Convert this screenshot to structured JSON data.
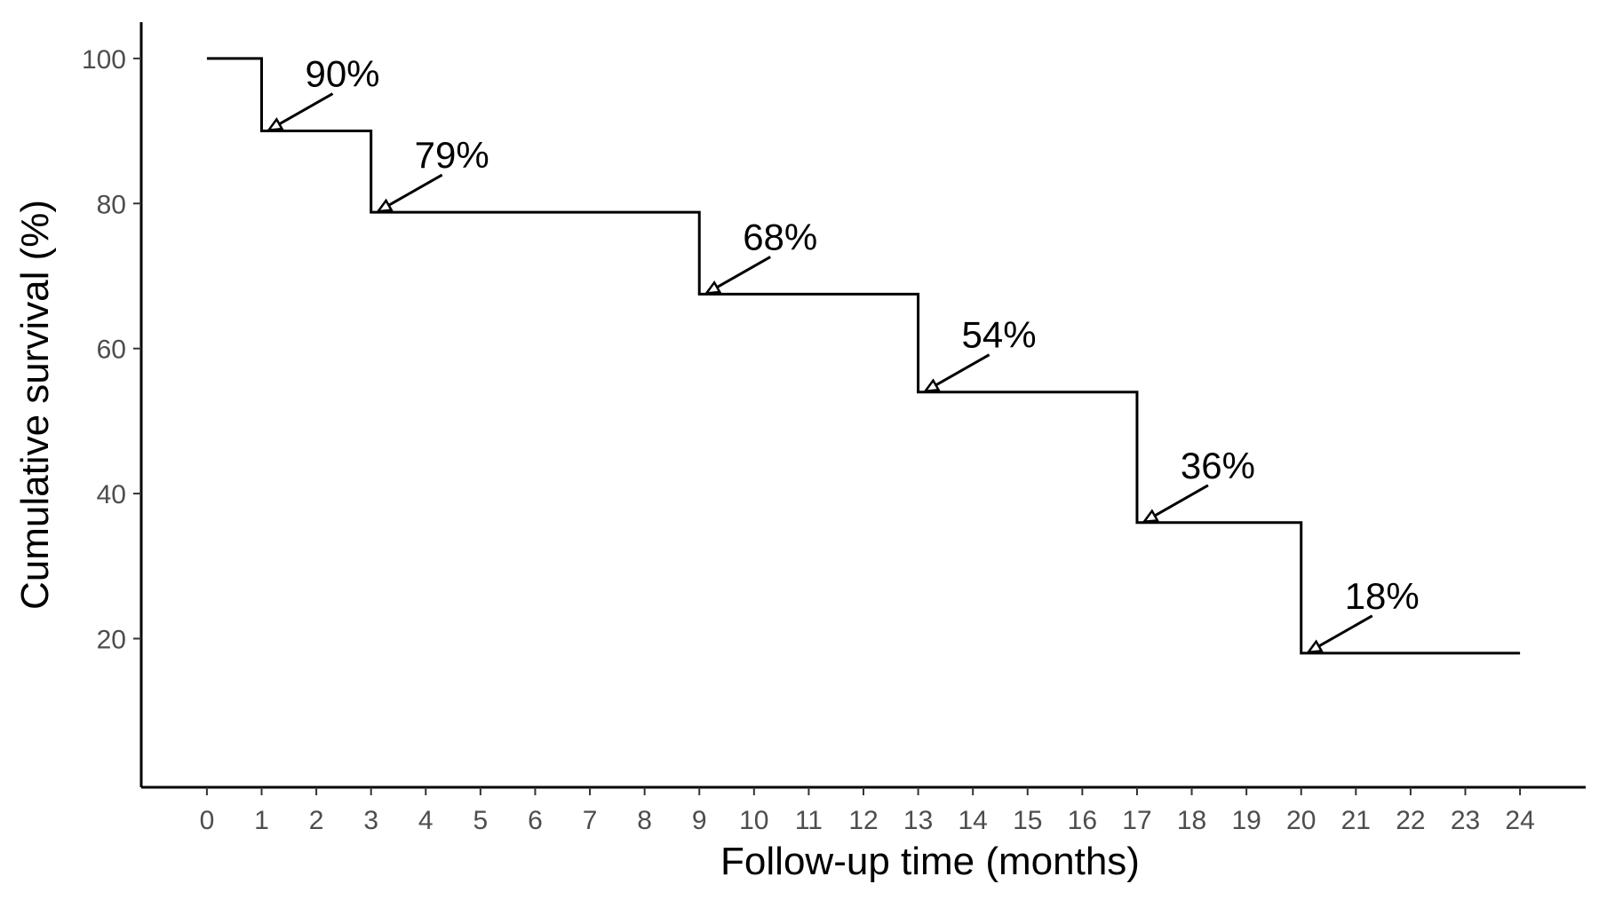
{
  "chart_data": {
    "type": "line",
    "step": true,
    "xlabel": "Follow-up time (months)",
    "ylabel": "Cumulative survival (%)",
    "x_ticks": [
      0,
      1,
      2,
      3,
      4,
      5,
      6,
      7,
      8,
      9,
      10,
      11,
      12,
      13,
      14,
      15,
      16,
      17,
      18,
      19,
      20,
      21,
      22,
      23,
      24
    ],
    "y_ticks": [
      20,
      40,
      60,
      80,
      100
    ],
    "xlim": [
      -1.2,
      25.2
    ],
    "ylim": [
      -0.5,
      105
    ],
    "grid": false,
    "line_color": "#000000",
    "series": [
      {
        "x": [
          0,
          1,
          3,
          9,
          13,
          17,
          20,
          24
        ],
        "y": [
          100,
          90,
          78.8,
          67.5,
          54,
          36,
          18,
          18
        ]
      }
    ],
    "annotations": [
      {
        "x": 1,
        "y": 90,
        "label": "90%"
      },
      {
        "x": 3,
        "y": 78.8,
        "label": "79%"
      },
      {
        "x": 9,
        "y": 67.5,
        "label": "68%"
      },
      {
        "x": 13,
        "y": 54,
        "label": "54%"
      },
      {
        "x": 17,
        "y": 36,
        "label": "36%"
      },
      {
        "x": 20,
        "y": 18,
        "label": "18%"
      }
    ]
  }
}
